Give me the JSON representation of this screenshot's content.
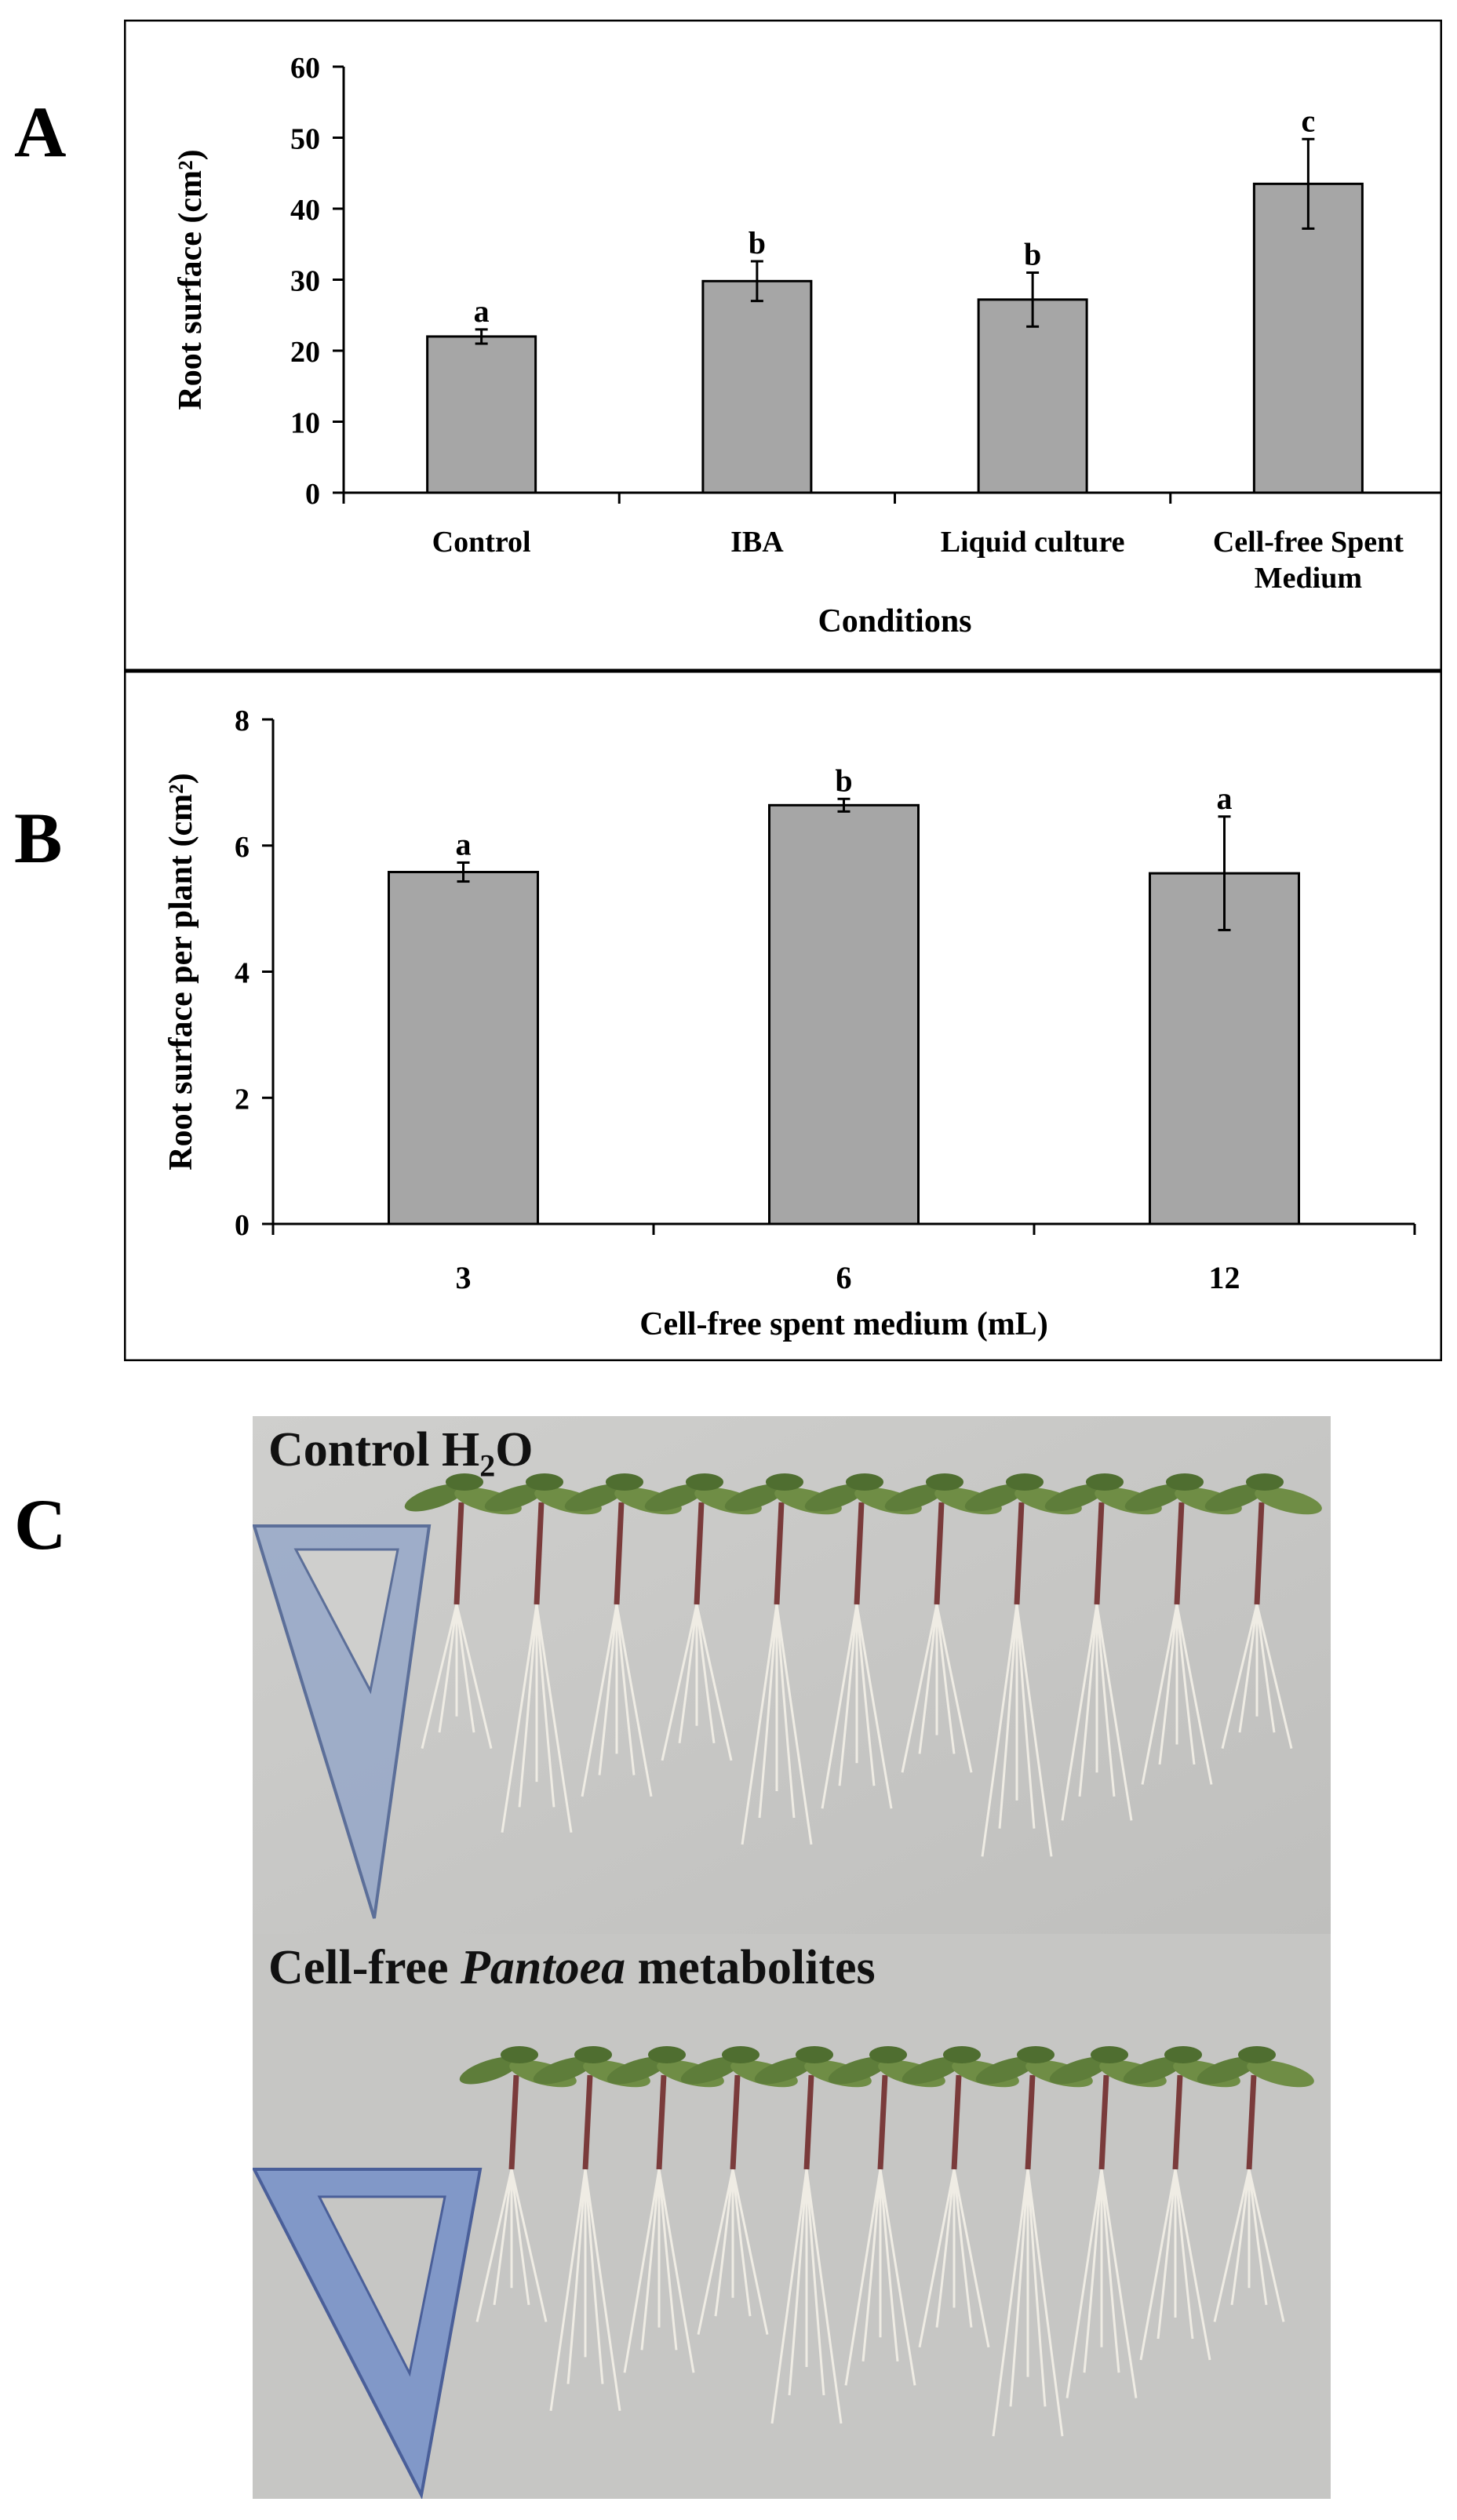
{
  "panels": {
    "a": "A",
    "b": "B",
    "c": "C"
  },
  "chart_data": [
    {
      "type": "bar",
      "categories": [
        "Control",
        "IBA",
        "Liquid culture",
        "Cell-free Spent Medium"
      ],
      "values": [
        22,
        29.8,
        27.2,
        43.5
      ],
      "errors": [
        1.0,
        2.8,
        3.8,
        6.3
      ],
      "significance": [
        "a",
        "b",
        "b",
        "c"
      ],
      "xlabel": "Conditions",
      "ylabel": "Root surface (cm²)",
      "ylim": [
        0,
        60
      ],
      "yticks": [
        0,
        10,
        20,
        30,
        40,
        50,
        60
      ],
      "bar_color": "#a6a6a6",
      "grid": false
    },
    {
      "type": "bar",
      "categories": [
        "3",
        "6",
        "12"
      ],
      "values": [
        5.58,
        6.64,
        5.56
      ],
      "errors": [
        0.15,
        0.1,
        0.9
      ],
      "significance": [
        "a",
        "b",
        "a"
      ],
      "xlabel": "Cell-free spent medium (mL)",
      "ylabel": "Root surface per plant (cm²)",
      "ylim": [
        0,
        8
      ],
      "yticks": [
        0,
        2,
        4,
        6,
        8
      ],
      "bar_color": "#a6a6a6",
      "grid": false
    }
  ],
  "photos": {
    "top_caption": "Control H",
    "top_caption_sub": "2",
    "top_caption_tail": "O",
    "bottom_caption_pre": "Cell-free ",
    "bottom_caption_italic": "Pantoea",
    "bottom_caption_post": " metabolites",
    "background_color": "#c9c9c9"
  }
}
